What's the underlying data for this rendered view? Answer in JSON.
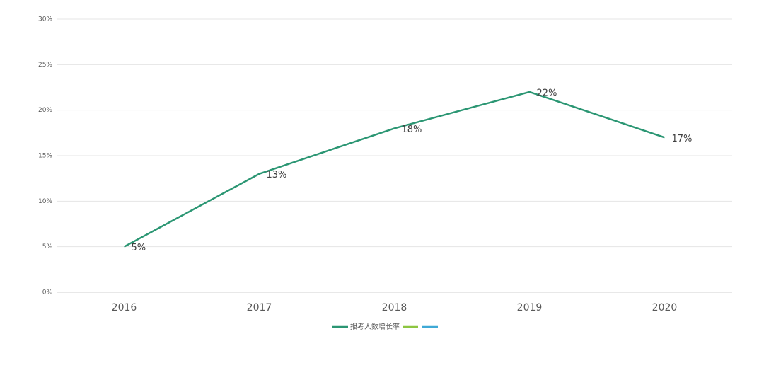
{
  "chart_data": {
    "type": "line",
    "categories": [
      "2016",
      "2017",
      "2018",
      "2019",
      "2020"
    ],
    "series": [
      {
        "name": "报考人数增长率",
        "color": "#2b9673",
        "values": [
          5,
          13,
          18,
          22,
          17
        ],
        "value_labels": [
          "5%",
          "13%",
          "18%",
          "22%",
          "17%"
        ]
      },
      {
        "name": null,
        "color": "#8dc641",
        "values": [
          null,
          null,
          null,
          null,
          null
        ]
      },
      {
        "name": null,
        "color": "#3fa9d6",
        "values": [
          null,
          null,
          null,
          null,
          null
        ]
      }
    ],
    "ylim": [
      0,
      30
    ],
    "yticks": [
      {
        "value": 0,
        "label": "0%"
      },
      {
        "value": 5,
        "label": "5%"
      },
      {
        "value": 10,
        "label": "10%"
      },
      {
        "value": 15,
        "label": "15%"
      },
      {
        "value": 20,
        "label": "20%"
      },
      {
        "value": 25,
        "label": "25%"
      },
      {
        "value": 30,
        "label": "30%"
      }
    ],
    "grid": true,
    "legend": "bottom"
  }
}
